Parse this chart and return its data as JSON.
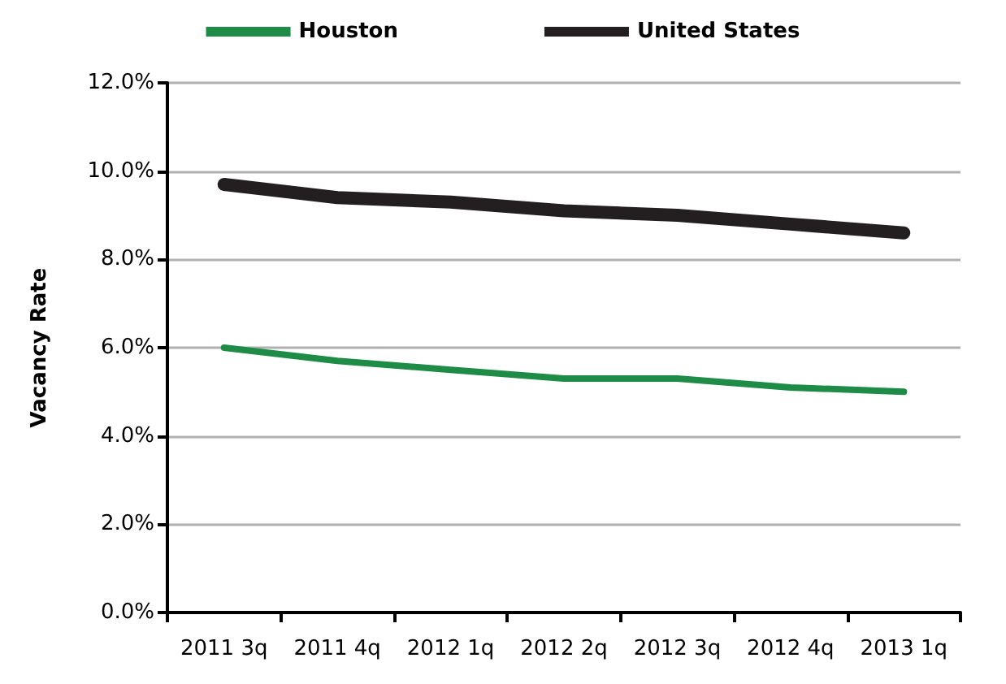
{
  "chart_data": {
    "type": "line",
    "ylabel": "Vacancy Rate",
    "categories": [
      "2011 3q",
      "2011 4q",
      "2012 1q",
      "2012 2q",
      "2012 3q",
      "2012 4q",
      "2013 1q"
    ],
    "series": [
      {
        "name": "Houston",
        "color": "#1e8b46",
        "values": [
          6.0,
          5.7,
          5.5,
          5.3,
          5.3,
          5.1,
          5.0
        ]
      },
      {
        "name": "United States",
        "color": "#231f20",
        "values": [
          9.7,
          9.4,
          9.3,
          9.1,
          9.0,
          8.8,
          8.6
        ]
      }
    ],
    "ylim": [
      0,
      12
    ],
    "yticks": [
      {
        "value": 0,
        "label": "0.0%"
      },
      {
        "value": 2,
        "label": "2.0%"
      },
      {
        "value": 4,
        "label": "4.0%"
      },
      {
        "value": 6,
        "label": "6.0%"
      },
      {
        "value": 8,
        "label": "8.0%"
      },
      {
        "value": 10,
        "label": "10.0%"
      },
      {
        "value": 12,
        "label": "12.0%"
      }
    ],
    "grid": "y",
    "legend": "top",
    "marker": "none",
    "line_style": "solid"
  }
}
